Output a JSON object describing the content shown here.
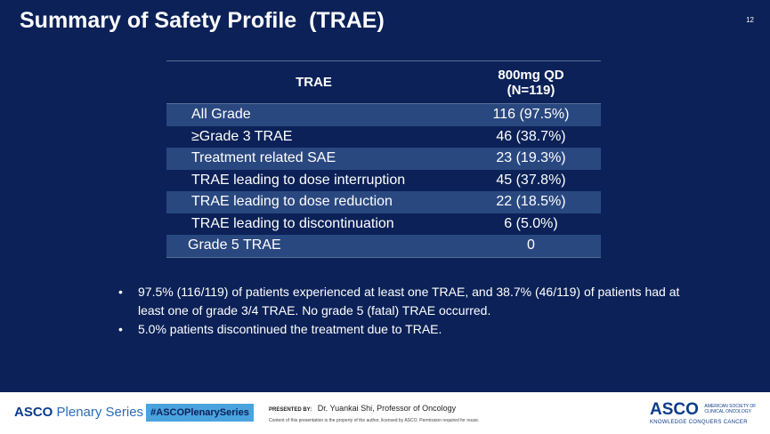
{
  "slide": {
    "title": "Summary of Safety Profile  (TRAE)",
    "page_number": "12"
  },
  "table": {
    "header": {
      "col1": "TRAE",
      "col2_line1": "800mg QD",
      "col2_line2": "(N=119)"
    },
    "rows": [
      {
        "label": "All Grade",
        "value": "116 (97.5%)"
      },
      {
        "label": "≥Grade 3 TRAE",
        "value": "46 (38.7%)"
      },
      {
        "label": "Treatment related SAE",
        "value": "23 (19.3%)"
      },
      {
        "label": "TRAE leading to dose interruption",
        "value": "45 (37.8%)"
      },
      {
        "label": "TRAE leading to dose reduction",
        "value": "22 (18.5%)"
      },
      {
        "label": "TRAE leading to discontinuation",
        "value": "6 (5.0%)"
      },
      {
        "label": "Grade 5 TRAE",
        "value": "0"
      }
    ]
  },
  "bullets": [
    "97.5% (116/119) of patients experienced at least one TRAE, and 38.7% (46/119) of patients had at least one of grade 3/4 TRAE. No grade 5 (fatal) TRAE occurred.",
    "5.0% patients discontinued the treatment due to TRAE."
  ],
  "footer": {
    "asco_word": "ASCO",
    "series_word": "Plenary Series",
    "hashtag": "#ASCOPlenarySeries",
    "presented_label": "PRESENTED BY:",
    "presenter": "Dr. Yuankai Shi, Professor of Oncology",
    "notice": "Content of this presentation is the property of the author, licensed by ASCO. Permission required for reuse.",
    "logo_text": "ASCO",
    "society_line1": "AMERICAN SOCIETY OF",
    "society_line2": "CLINICAL ONCOLOGY",
    "tagline": "KNOWLEDGE CONQUERS CANCER"
  },
  "colors": {
    "slide_bg": "#0b2157",
    "row_shade": "#2a4880",
    "hashtag_bg": "#4aa3df"
  }
}
